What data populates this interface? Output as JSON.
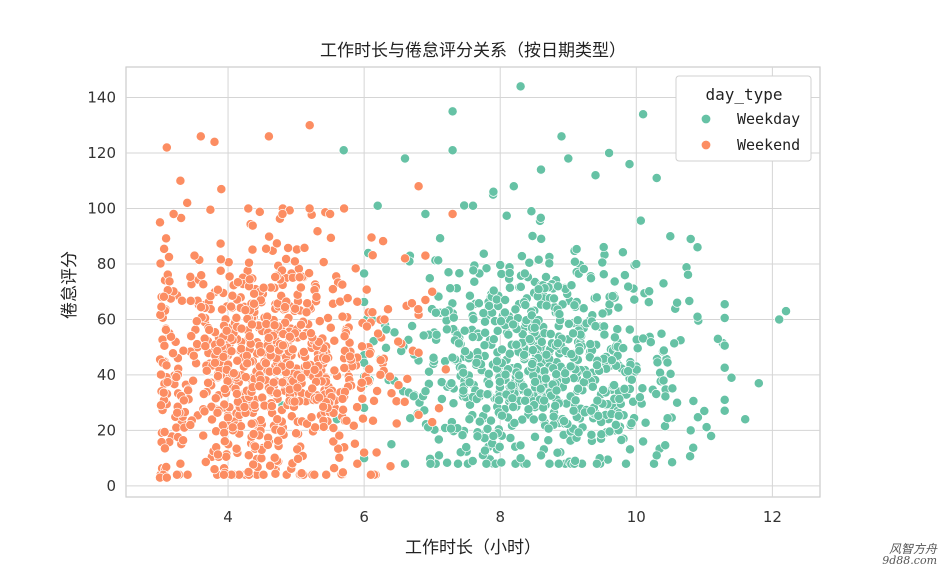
{
  "chart_data": {
    "type": "scatter",
    "title": "工作时长与倦怠评分关系（按日期类型）",
    "xlabel": "工作时长（小时）",
    "ylabel": "倦怠评分",
    "xlim": [
      2.5,
      12.7
    ],
    "ylim": [
      -4,
      151
    ],
    "xticks": [
      4,
      6,
      8,
      10,
      12
    ],
    "yticks": [
      0,
      20,
      40,
      60,
      80,
      100,
      120,
      140
    ],
    "grid": true,
    "legend": {
      "title": "day_type",
      "placement": "top-right"
    },
    "series": [
      {
        "name": "Weekday",
        "color": "#66c2a5",
        "points": [
          [
            5.7,
            121
          ],
          [
            6.6,
            118
          ],
          [
            6.2,
            101
          ],
          [
            7.3,
            135
          ],
          [
            7.3,
            121
          ],
          [
            8.3,
            144
          ],
          [
            8.9,
            126
          ],
          [
            9.6,
            120
          ],
          [
            10.1,
            134
          ],
          [
            10.3,
            111
          ],
          [
            9.9,
            116
          ],
          [
            9.4,
            112
          ],
          [
            9.0,
            118
          ],
          [
            8.6,
            114
          ],
          [
            8.2,
            108
          ],
          [
            7.9,
            106
          ],
          [
            7.6,
            101
          ],
          [
            6.9,
            98
          ],
          [
            10.5,
            90
          ],
          [
            10.8,
            89
          ],
          [
            10.9,
            86
          ],
          [
            10.0,
            80
          ],
          [
            10.4,
            73
          ],
          [
            10.6,
            66
          ],
          [
            10.9,
            61
          ],
          [
            11.2,
            53
          ],
          [
            11.4,
            39
          ],
          [
            11.8,
            37
          ],
          [
            11.6,
            24
          ],
          [
            12.1,
            60
          ],
          [
            12.2,
            63
          ],
          [
            11.1,
            18
          ],
          [
            11.3,
            31
          ],
          [
            10.8,
            20
          ],
          [
            11.0,
            27
          ],
          [
            10.4,
            38
          ],
          [
            10.6,
            30
          ],
          [
            10.3,
            11
          ],
          [
            10.1,
            16
          ],
          [
            9.7,
            22
          ],
          [
            9.1,
            9
          ],
          [
            8.6,
            11
          ],
          [
            8.3,
            10
          ],
          [
            7.9,
            18
          ],
          [
            7.5,
            14
          ],
          [
            7.1,
            11
          ],
          [
            6.6,
            8
          ],
          [
            6.0,
            10
          ],
          [
            5.6,
            24
          ],
          [
            5.2,
            31
          ],
          [
            4.8,
            29
          ],
          [
            4.7,
            41
          ],
          [
            5.7,
            34
          ],
          [
            6.4,
            15
          ]
        ],
        "cluster": {
          "center": [
            8.6,
            45
          ],
          "spread": [
            1.05,
            20
          ],
          "x_range": [
            6.0,
            11.3
          ],
          "y_range": [
            8,
            105
          ],
          "count": 780
        }
      },
      {
        "name": "Weekend",
        "color": "#fc8d62",
        "points": [
          [
            3.1,
            122
          ],
          [
            3.6,
            126
          ],
          [
            3.8,
            124
          ],
          [
            4.6,
            126
          ],
          [
            5.2,
            130
          ],
          [
            3.3,
            110
          ],
          [
            3.9,
            107
          ],
          [
            3.4,
            102
          ],
          [
            3.2,
            98
          ],
          [
            3.0,
            95
          ],
          [
            4.8,
            98
          ],
          [
            5.5,
            98
          ],
          [
            6.8,
            108
          ],
          [
            7.3,
            98
          ],
          [
            6.6,
            82
          ],
          [
            6.9,
            83
          ],
          [
            7.0,
            70
          ],
          [
            6.9,
            67
          ],
          [
            3.0,
            3
          ],
          [
            3.1,
            3
          ],
          [
            4.3,
            5
          ],
          [
            3.3,
            8
          ],
          [
            3.8,
            6
          ],
          [
            5.9,
            8
          ],
          [
            6.5,
            52
          ],
          [
            6.3,
            60
          ],
          [
            7.0,
            23
          ],
          [
            7.1,
            28
          ],
          [
            7.2,
            42
          ],
          [
            6.0,
            12
          ]
        ],
        "cluster": {
          "center": [
            4.6,
            42
          ],
          "spread": [
            0.9,
            22
          ],
          "x_range": [
            3.0,
            6.8
          ],
          "y_range": [
            4,
            100
          ],
          "count": 820
        }
      }
    ]
  },
  "watermark": {
    "line1": "风智方舟",
    "line2": "9d88.com"
  }
}
